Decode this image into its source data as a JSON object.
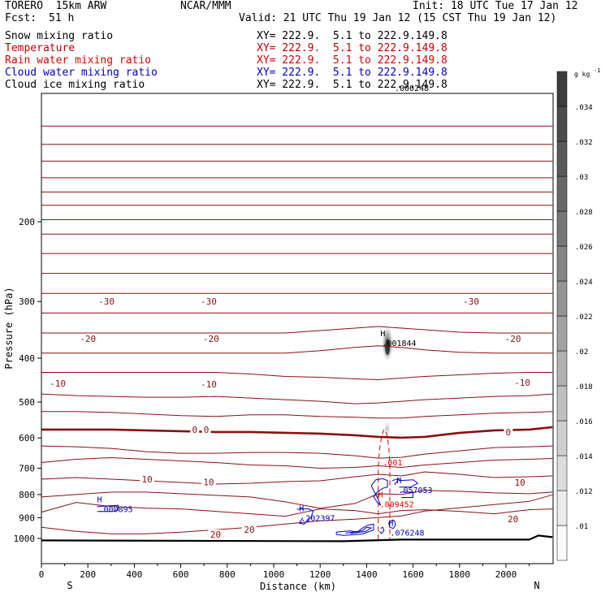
{
  "header": {
    "model": "TORERO  15km ARW",
    "center": "NCAR/MMM",
    "init": "Init: 18 UTC Tue 17 Jan 12",
    "fcst_label": "Fcst:",
    "fcst_value": "51 h",
    "valid": "Valid: 21 UTC Thu 19 Jan 12 (15 CST Thu 19 Jan 12)"
  },
  "fields": [
    {
      "name": "Snow mixing ratio",
      "xy": "XY= 222.9.  5.1 to 222.9.149.8",
      "color": "#000000"
    },
    {
      "name": "Temperature",
      "xy": "XY= 222.9.  5.1 to 222.9.149.8",
      "color": "#c00000"
    },
    {
      "name": "Rain water mixing ratio",
      "xy": "XY= 222.9.  5.1 to 222.9.149.8",
      "color": "#e00000"
    },
    {
      "name": "Cloud water mixing ratio",
      "xy": "XY= 222.9.  5.1 to 222.9.149.8",
      "color": "#0000cc"
    },
    {
      "name": "Cloud ice mixing ratio",
      "xy": "XY= 222.9.  5.1 to 222.9.149.8",
      "color": "#000000"
    }
  ],
  "chart_data": {
    "type": "contour",
    "xlabel": "Distance (km)",
    "ylabel": "Pressure (hPa)",
    "x_ticks": [
      0,
      200,
      400,
      600,
      800,
      1000,
      1200,
      1400,
      1600,
      1800,
      2000
    ],
    "y_ticks": [
      200,
      300,
      400,
      500,
      600,
      700,
      800,
      900,
      1000
    ],
    "xlim": [
      0,
      2200
    ],
    "ylim": [
      1050,
      100
    ],
    "y_scale": "log",
    "left_end_label": "S",
    "right_end_label": "N",
    "colorbar": {
      "unit": "g kg",
      "unit_exp": "-1",
      "labels": [
        ".01",
        ".012",
        ".014",
        ".016",
        ".018",
        ".02",
        ".022",
        ".024",
        ".026",
        ".028",
        ".03",
        ".032",
        ".034"
      ]
    },
    "temperature_contours": {
      "interval_c": 5,
      "zero_isotherm_p_hpa": 575,
      "labels": [
        {
          "text": "-30",
          "x": 280,
          "p": 300
        },
        {
          "text": "-30",
          "x": 720,
          "p": 300
        },
        {
          "text": "-30",
          "x": 1850,
          "p": 300
        },
        {
          "text": "-20",
          "x": 200,
          "p": 362
        },
        {
          "text": "-20",
          "x": 730,
          "p": 362
        },
        {
          "text": "-20",
          "x": 2030,
          "p": 362
        },
        {
          "text": "-10",
          "x": 70,
          "p": 455
        },
        {
          "text": "-10",
          "x": 720,
          "p": 457
        },
        {
          "text": "-10",
          "x": 2070,
          "p": 453
        },
        {
          "text": "0",
          "x": 660,
          "p": 575
        },
        {
          "text": "0",
          "x": 710,
          "p": 575
        },
        {
          "text": "0",
          "x": 2010,
          "p": 582
        },
        {
          "text": "10",
          "x": 455,
          "p": 740
        },
        {
          "text": "10",
          "x": 720,
          "p": 750
        },
        {
          "text": "10",
          "x": 2060,
          "p": 752
        },
        {
          "text": "20",
          "x": 750,
          "p": 980
        },
        {
          "text": "20",
          "x": 895,
          "p": 955
        },
        {
          "text": "20",
          "x": 2030,
          "p": 905
        }
      ]
    },
    "maxima": [
      {
        "mark": "H",
        "value": ".001844",
        "field": "Cloud ice mixing ratio",
        "x": 1470,
        "p": 370
      },
      {
        "mark": "H",
        "value": ".009452",
        "field": "Rain water mixing ratio",
        "x": 1460,
        "p": 840
      },
      {
        "mark": "H",
        "value": ".057053",
        "field": "Cloud water mixing ratio",
        "x": 1540,
        "p": 780
      },
      {
        "mark": "H",
        "value": ".000895",
        "field": "Cloud water mixing ratio",
        "x": 250,
        "p": 860
      },
      {
        "mark": "H",
        "value": ".202397",
        "field": "Cloud water mixing ratio",
        "x": 1120,
        "p": 900
      },
      {
        "mark": "H",
        "value": ".076248",
        "field": "Cloud water mixing ratio",
        "x": 1505,
        "p": 970
      }
    ],
    "header_overlap_value": ".000248",
    "rain_contour_label": ".001",
    "surface_pressure_hpa": 1010
  }
}
